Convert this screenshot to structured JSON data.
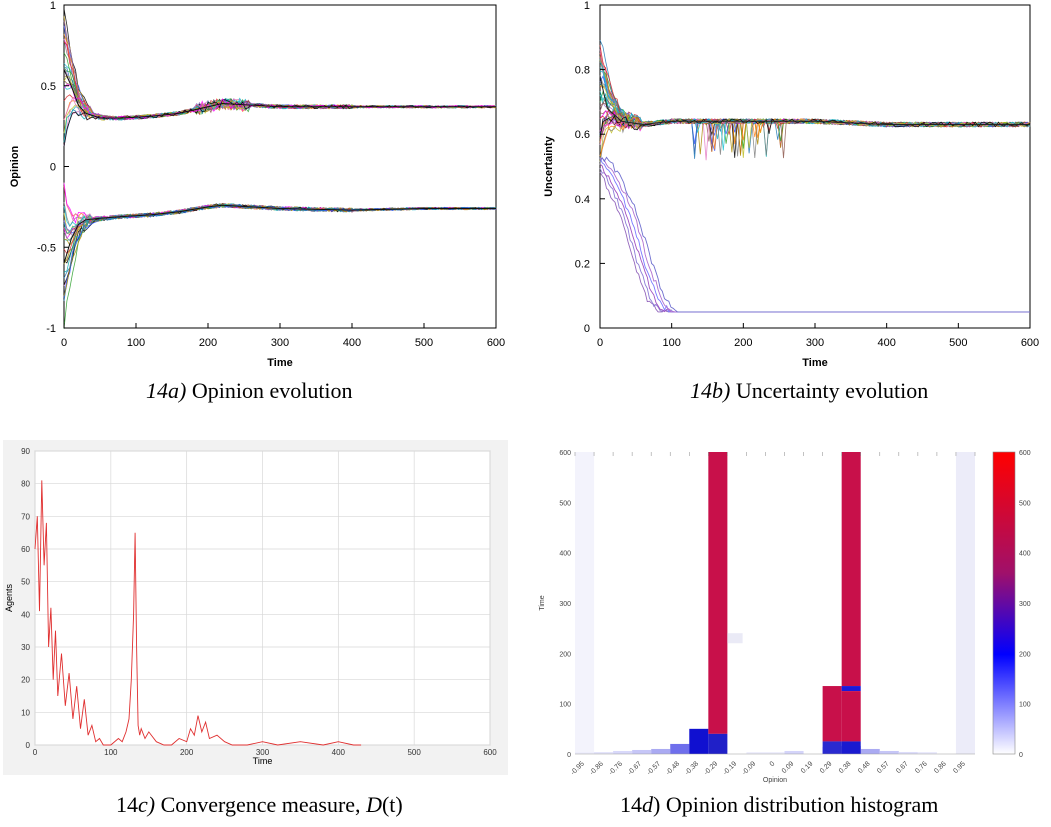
{
  "figure": {
    "captions": [
      {
        "label": "14a)",
        "text": " Opinion evolution"
      },
      {
        "label": "14b)",
        "text": " Uncertainty evolution"
      },
      {
        "label_pre": "14",
        "label_it": "c)",
        "text": " Convergence measure, ",
        "var": "D",
        "tail": "(t)"
      },
      {
        "label_pre": "14",
        "label_it": "d",
        "text": ") Opinion distribution histogram"
      }
    ]
  },
  "chart_data": [
    {
      "type": "line",
      "id": "a",
      "xlabel": "Time",
      "ylabel": "Opinion",
      "xlim": [
        0,
        600
      ],
      "ylim": [
        -1,
        1
      ],
      "xticks": [
        "0",
        "100",
        "200",
        "300",
        "400",
        "500",
        "600"
      ],
      "yticks": [
        "-1",
        "-0.5",
        "0",
        "0.5",
        "1"
      ],
      "clusters": [
        {
          "name": "",
          "values_t": [
            0,
            10,
            20,
            30,
            50,
            80,
            120,
            160,
            200,
            220,
            260,
            300,
            400,
            500,
            600
          ],
          "values": [
            0.6,
            0.5,
            0.38,
            0.33,
            0.3,
            0.3,
            0.31,
            0.33,
            0.37,
            0.39,
            0.38,
            0.37,
            0.37,
            0.37,
            0.37
          ]
        },
        {
          "name": "",
          "values_t": [
            0,
            10,
            20,
            30,
            50,
            80,
            120,
            160,
            200,
            220,
            260,
            300,
            400,
            500,
            600
          ],
          "values": [
            -0.6,
            -0.45,
            -0.36,
            -0.33,
            -0.32,
            -0.31,
            -0.3,
            -0.28,
            -0.25,
            -0.24,
            -0.25,
            -0.26,
            -0.27,
            -0.26,
            -0.26
          ]
        }
      ],
      "grid": false
    },
    {
      "type": "line",
      "id": "b",
      "xlabel": "Time",
      "ylabel": "Uncertainty",
      "xlim": [
        0,
        600
      ],
      "ylim": [
        0,
        1
      ],
      "xticks": [
        "0",
        "100",
        "200",
        "300",
        "400",
        "500",
        "600"
      ],
      "yticks": [
        "0",
        "0.2",
        "0.4",
        "0.6",
        "0.8",
        "1"
      ],
      "series": [
        {
          "name": "",
          "x": [
            0,
            10,
            30,
            60,
            100,
            200,
            300,
            400,
            500,
            600
          ],
          "values": [
            0.78,
            0.68,
            0.64,
            0.63,
            0.64,
            0.64,
            0.64,
            0.63,
            0.63,
            0.63
          ]
        },
        {
          "name": "",
          "x": [
            0,
            20,
            40,
            60,
            80,
            95,
            100,
            600
          ],
          "values": [
            0.52,
            0.45,
            0.35,
            0.2,
            0.08,
            0.05,
            0.05,
            0.05
          ]
        }
      ],
      "grid": false
    },
    {
      "type": "line",
      "id": "c",
      "xlabel": "Time",
      "ylabel": "Agents",
      "xlim": [
        0,
        600
      ],
      "ylim": [
        0,
        90
      ],
      "xticks": [
        "0",
        "100",
        "200",
        "300",
        "400",
        "500",
        "600"
      ],
      "yticks": [
        "0",
        "10",
        "20",
        "30",
        "40",
        "50",
        "60",
        "70",
        "80",
        "90"
      ],
      "series": [
        {
          "name": "",
          "x": [
            0,
            3,
            6,
            9,
            12,
            15,
            18,
            21,
            24,
            27,
            30,
            35,
            40,
            45,
            50,
            55,
            60,
            65,
            70,
            75,
            80,
            85,
            90,
            100,
            110,
            115,
            120,
            124,
            127,
            130,
            132,
            134,
            136,
            138,
            140,
            145,
            150,
            160,
            170,
            180,
            190,
            200,
            205,
            210,
            215,
            220,
            225,
            230,
            240,
            250,
            260,
            280,
            300,
            320,
            350,
            380,
            400,
            420,
            430
          ],
          "values": [
            60,
            70,
            41,
            81,
            55,
            68,
            30,
            42,
            20,
            35,
            15,
            28,
            12,
            22,
            8,
            18,
            5,
            14,
            3,
            6,
            1,
            2,
            0,
            0,
            2,
            1,
            4,
            8,
            20,
            40,
            65,
            30,
            6,
            3,
            5,
            2,
            4,
            1,
            0,
            0,
            2,
            1,
            5,
            3,
            9,
            4,
            7,
            2,
            3,
            1,
            0,
            0,
            1,
            0,
            1,
            0,
            1,
            0,
            0
          ]
        }
      ],
      "grid": true
    },
    {
      "type": "heatmap",
      "id": "d",
      "xlabel": "Opinion",
      "ylabel": "Time",
      "ylim": [
        0,
        600
      ],
      "xticks": [
        "-0.95",
        "-0.86",
        "-0.76",
        "-0.67",
        "-0.57",
        "-0.48",
        "-0.38",
        "-0.29",
        "-0.19",
        "-0.09",
        "0",
        "0.09",
        "0.19",
        "0.29",
        "0.38",
        "0.48",
        "0.57",
        "0.67",
        "0.76",
        "0.86",
        "0.95"
      ],
      "yticks": [
        "0",
        "100",
        "200",
        "300",
        "400",
        "500",
        "600"
      ],
      "colorbar_ticks": [
        "0",
        "100",
        "200",
        "300",
        "400",
        "500",
        "600"
      ],
      "colorbar_range": [
        0,
        600
      ],
      "colors": {
        "low": "#ffffff",
        "mid": "#0000ff",
        "high": "#ff0000"
      }
    }
  ]
}
